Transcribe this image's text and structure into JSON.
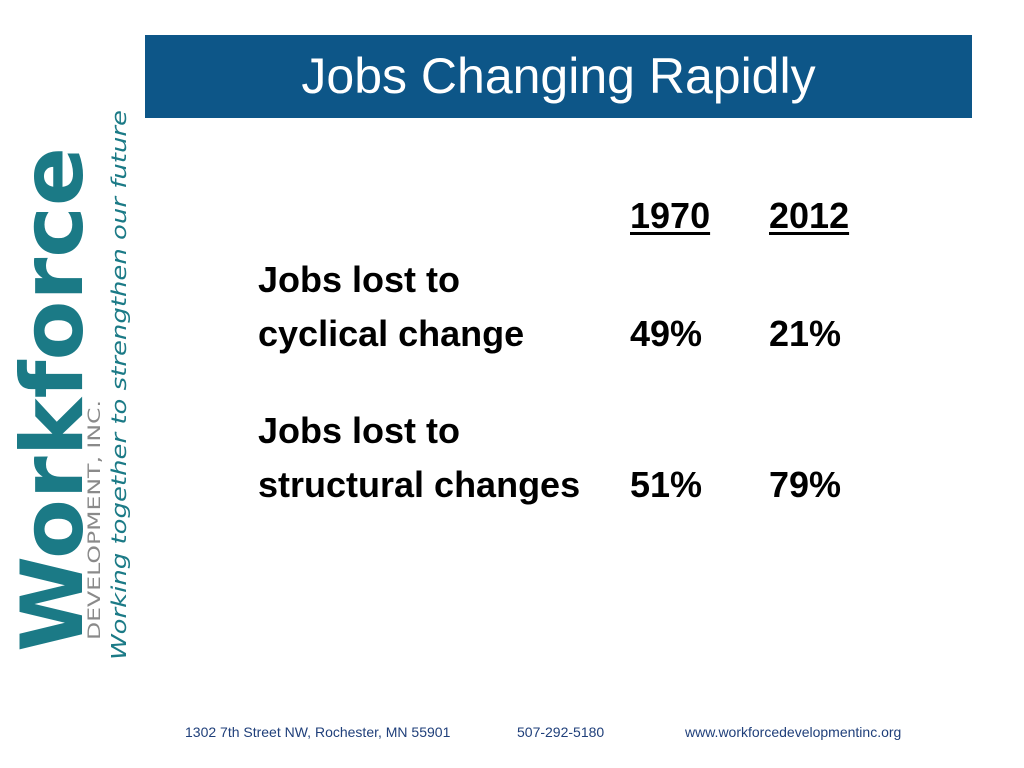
{
  "title": "Jobs Changing Rapidly",
  "logo": {
    "name": "Workforce",
    "subtitle": "DEVELOPMENT, INC.",
    "tagline": "Working together to strengthen our future"
  },
  "table": {
    "columns": [
      "1970",
      "2012"
    ],
    "rows": [
      {
        "label": [
          "Jobs lost to",
          "cyclical change"
        ],
        "values": [
          "49%",
          "21%"
        ]
      },
      {
        "label": [
          "Jobs lost to",
          "structural changes"
        ],
        "values": [
          "51%",
          "79%"
        ]
      }
    ]
  },
  "footer": {
    "address": "1302 7th Street NW, Rochester, MN 55901",
    "phone": "507-292-5180",
    "website": "www.workforcedevelopmentinc.org"
  }
}
